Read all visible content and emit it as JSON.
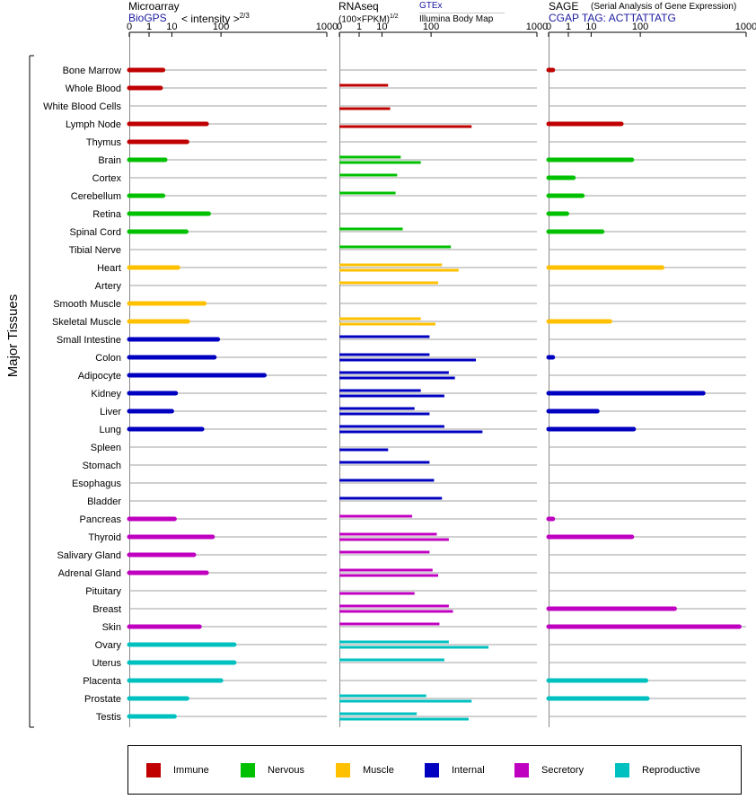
{
  "headers": {
    "microarray": {
      "title": "Microarray",
      "source": "BioGPS",
      "unit": "< intensity >",
      "unit_exp": "2/3"
    },
    "rnaseq": {
      "title": "RNAseq",
      "unit": "(100×FPKM)",
      "unit_exp": "1/2",
      "source1": "GTEx",
      "source2": "Illumina Body Map"
    },
    "sage": {
      "title": "SAGE",
      "subtitle": "(Serial Analysis of Gene Expression)",
      "tag": "CGAP TAG: ACTTATTATG"
    }
  },
  "y_axis_label": "Major Tissues",
  "legend": [
    {
      "name": "Immune",
      "color": "#c00000"
    },
    {
      "name": "Nervous",
      "color": "#00c000"
    },
    {
      "name": "Muscle",
      "color": "#ffc000"
    },
    {
      "name": "Internal",
      "color": "#0000c0"
    },
    {
      "name": "Secretory",
      "color": "#c000c0"
    },
    {
      "name": "Reproductive",
      "color": "#00c0c0"
    }
  ],
  "chart_data": {
    "type": "bar",
    "orientation": "horizontal",
    "ticks": [
      "0",
      "1",
      "10",
      "100",
      "1000"
    ],
    "ylabel": "Major Tissues",
    "panels": [
      {
        "name": "Microarray",
        "xlim": [
          0,
          1000
        ]
      },
      {
        "name": "RNAseq",
        "xlim": [
          0,
          1000
        ]
      },
      {
        "name": "SAGE",
        "xlim": [
          0,
          1000
        ]
      }
    ],
    "tissues": [
      {
        "name": "Bone Marrow",
        "group": "Immune",
        "microarray": 5,
        "gtex": null,
        "ibm": null,
        "sage": 0.01
      },
      {
        "name": "Whole Blood",
        "group": "Immune",
        "microarray": 4,
        "gtex": 15,
        "ibm": null,
        "sage": null
      },
      {
        "name": "White Blood Cells",
        "group": "Immune",
        "microarray": null,
        "gtex": null,
        "ibm": 17,
        "sage": null
      },
      {
        "name": "Lymph Node",
        "group": "Immune",
        "microarray": 60,
        "gtex": null,
        "ibm": 300,
        "sage": 50
      },
      {
        "name": "Thymus",
        "group": "Immune",
        "microarray": 25,
        "gtex": null,
        "ibm": null,
        "sage": null
      },
      {
        "name": "Brain",
        "group": "Nervous",
        "microarray": 6,
        "gtex": 30,
        "ibm": 70,
        "sage": 75
      },
      {
        "name": "Cortex",
        "group": "Nervous",
        "microarray": null,
        "gtex": 25,
        "ibm": null,
        "sage": 2
      },
      {
        "name": "Cerebellum",
        "group": "Nervous",
        "microarray": 5,
        "gtex": 23,
        "ibm": null,
        "sage": 5
      },
      {
        "name": "Retina",
        "group": "Nervous",
        "microarray": 65,
        "gtex": null,
        "ibm": null,
        "sage": 0.8
      },
      {
        "name": "Spinal Cord",
        "group": "Nervous",
        "microarray": 24,
        "gtex": 33,
        "ibm": null,
        "sage": 20
      },
      {
        "name": "Tibial Nerve",
        "group": "Nervous",
        "microarray": null,
        "gtex": 180,
        "ibm": null,
        "sage": null
      },
      {
        "name": "Heart",
        "group": "Muscle",
        "microarray": 15,
        "gtex": 140,
        "ibm": 220,
        "sage": 190
      },
      {
        "name": "Artery",
        "group": "Muscle",
        "microarray": null,
        "gtex": 125,
        "ibm": null,
        "sage": null
      },
      {
        "name": "Smooth Muscle",
        "group": "Muscle",
        "microarray": 55,
        "gtex": null,
        "ibm": null,
        "sage": null
      },
      {
        "name": "Skeletal Muscle",
        "group": "Muscle",
        "microarray": 26,
        "gtex": 70,
        "ibm": 115,
        "sage": 30
      },
      {
        "name": "Small Intestine",
        "group": "Internal",
        "microarray": 90,
        "gtex": 95,
        "ibm": null,
        "sage": null
      },
      {
        "name": "Colon",
        "group": "Internal",
        "microarray": 80,
        "gtex": 95,
        "ibm": 330,
        "sage": 0.01
      },
      {
        "name": "Adipocyte",
        "group": "Internal",
        "microarray": 320,
        "gtex": 170,
        "ibm": 200,
        "sage": null
      },
      {
        "name": "Kidney",
        "group": "Internal",
        "microarray": 13,
        "gtex": 70,
        "ibm": 150,
        "sage": 480
      },
      {
        "name": "Liver",
        "group": "Internal",
        "microarray": 10,
        "gtex": 55,
        "ibm": 95,
        "sage": 15
      },
      {
        "name": "Lung",
        "group": "Internal",
        "microarray": 50,
        "gtex": 150,
        "ibm": 380,
        "sage": 80
      },
      {
        "name": "Spleen",
        "group": "Internal",
        "microarray": null,
        "gtex": null,
        "ibm": 15,
        "sage": null
      },
      {
        "name": "Stomach",
        "group": "Internal",
        "microarray": null,
        "gtex": 95,
        "ibm": null,
        "sage": null
      },
      {
        "name": "Esophagus",
        "group": "Internal",
        "microarray": null,
        "gtex": 110,
        "ibm": null,
        "sage": null
      },
      {
        "name": "Bladder",
        "group": "Internal",
        "microarray": null,
        "gtex": 140,
        "ibm": null,
        "sage": null
      },
      {
        "name": "Pancreas",
        "group": "Secretory",
        "microarray": 12,
        "gtex": 50,
        "ibm": null,
        "sage": 0.01
      },
      {
        "name": "Thyroid",
        "group": "Secretory",
        "microarray": 75,
        "gtex": 120,
        "ibm": 170,
        "sage": 75
      },
      {
        "name": "Salivary Gland",
        "group": "Secretory",
        "microarray": 35,
        "gtex": 95,
        "ibm": null,
        "sage": null
      },
      {
        "name": "Adrenal Gland",
        "group": "Secretory",
        "microarray": 60,
        "gtex": 105,
        "ibm": 125,
        "sage": null
      },
      {
        "name": "Pituitary",
        "group": "Secretory",
        "microarray": null,
        "gtex": null,
        "ibm": 55,
        "sage": null
      },
      {
        "name": "Breast",
        "group": "Secretory",
        "microarray": null,
        "gtex": 170,
        "ibm": 190,
        "sage": 260
      },
      {
        "name": "Skin",
        "group": "Secretory",
        "microarray": 45,
        "gtex": 130,
        "ibm": null,
        "sage": 900
      },
      {
        "name": "Ovary",
        "group": "Reproductive",
        "microarray": 150,
        "gtex": 170,
        "ibm": 430,
        "sage": null
      },
      {
        "name": "Uterus",
        "group": "Reproductive",
        "microarray": 150,
        "gtex": 150,
        "ibm": null,
        "sage": null
      },
      {
        "name": "Placenta",
        "group": "Reproductive",
        "microarray": 100,
        "gtex": null,
        "ibm": null,
        "sage": 120
      },
      {
        "name": "Prostate",
        "group": "Reproductive",
        "microarray": 25,
        "gtex": 85,
        "ibm": 300,
        "sage": 125
      },
      {
        "name": "Testis",
        "group": "Reproductive",
        "microarray": 12,
        "gtex": 60,
        "ibm": 280,
        "sage": null
      }
    ]
  }
}
